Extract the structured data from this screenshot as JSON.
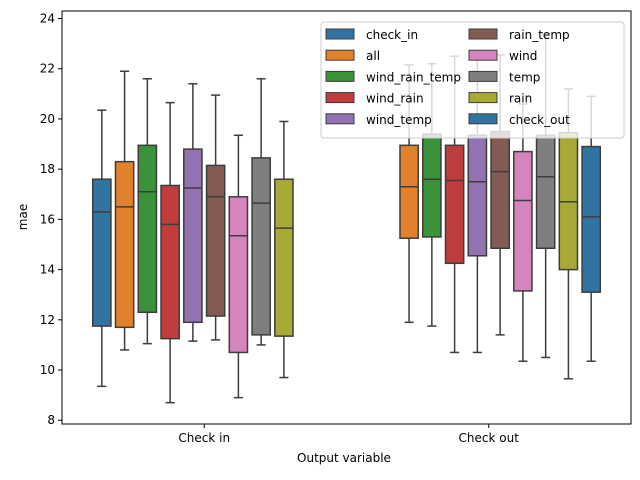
{
  "chart_data": {
    "type": "boxplot",
    "title": "",
    "xlabel": "Output variable",
    "ylabel": "mae",
    "ylim": [
      7.85,
      24.3
    ],
    "yticks": [
      8,
      10,
      12,
      14,
      16,
      18,
      20,
      22,
      24
    ],
    "categories": [
      "Check in",
      "Check out"
    ],
    "legend_position": "top-right",
    "series": [
      {
        "name": "check_in",
        "color": "#3274a1",
        "boxes": [
          {
            "whislo": 9.35,
            "q1": 11.75,
            "med": 16.3,
            "q3": 17.6,
            "whishi": 20.35
          },
          null
        ]
      },
      {
        "name": "all",
        "color": "#e1812c",
        "boxes": [
          {
            "whislo": 10.8,
            "q1": 11.7,
            "med": 16.5,
            "q3": 18.3,
            "whishi": 21.9
          },
          {
            "whislo": 11.9,
            "q1": 15.25,
            "med": 17.3,
            "q3": 18.95,
            "whishi": 22.15
          }
        ]
      },
      {
        "name": "wind_rain_temp",
        "color": "#3a923a",
        "boxes": [
          {
            "whislo": 11.05,
            "q1": 12.3,
            "med": 17.1,
            "q3": 18.95,
            "whishi": 21.6
          },
          {
            "whislo": 11.75,
            "q1": 15.3,
            "med": 17.6,
            "q3": 19.4,
            "whishi": 22.2
          }
        ]
      },
      {
        "name": "wind_rain",
        "color": "#c03d3e",
        "boxes": [
          {
            "whislo": 8.7,
            "q1": 11.25,
            "med": 15.8,
            "q3": 17.35,
            "whishi": 20.65
          },
          {
            "whislo": 10.7,
            "q1": 14.25,
            "med": 17.55,
            "q3": 18.95,
            "whishi": 22.5
          }
        ]
      },
      {
        "name": "wind_temp",
        "color": "#9372b2",
        "boxes": [
          {
            "whislo": 11.15,
            "q1": 11.9,
            "med": 17.25,
            "q3": 18.8,
            "whishi": 21.4
          },
          {
            "whislo": 10.7,
            "q1": 14.55,
            "med": 17.5,
            "q3": 19.35,
            "whishi": 22.55
          }
        ]
      },
      {
        "name": "rain_temp",
        "color": "#845b53",
        "boxes": [
          {
            "whislo": 11.2,
            "q1": 12.15,
            "med": 16.9,
            "q3": 18.15,
            "whishi": 20.95
          },
          {
            "whislo": 11.4,
            "q1": 14.85,
            "med": 17.9,
            "q3": 19.5,
            "whishi": 22.55
          }
        ]
      },
      {
        "name": "wind",
        "color": "#d684bd",
        "boxes": [
          {
            "whislo": 8.9,
            "q1": 10.7,
            "med": 15.35,
            "q3": 16.9,
            "whishi": 19.35
          },
          {
            "whislo": 10.35,
            "q1": 13.15,
            "med": 16.75,
            "q3": 18.7,
            "whishi": 20.6
          }
        ]
      },
      {
        "name": "temp",
        "color": "#7f7f7f",
        "boxes": [
          {
            "whislo": 11.0,
            "q1": 11.4,
            "med": 16.65,
            "q3": 18.45,
            "whishi": 21.6
          },
          {
            "whislo": 10.5,
            "q1": 14.85,
            "med": 17.7,
            "q3": 19.35,
            "whishi": 23.4
          }
        ]
      },
      {
        "name": "rain",
        "color": "#a9aa35",
        "boxes": [
          {
            "whislo": 9.7,
            "q1": 11.35,
            "med": 15.65,
            "q3": 17.6,
            "whishi": 19.9
          },
          {
            "whislo": 9.65,
            "q1": 14.0,
            "med": 16.7,
            "q3": 19.45,
            "whishi": 21.2
          }
        ]
      },
      {
        "name": "check_out",
        "color": "#3274a1",
        "boxes": [
          null,
          {
            "whislo": 10.35,
            "q1": 13.1,
            "med": 16.1,
            "q3": 18.9,
            "whishi": 20.9
          }
        ]
      }
    ]
  }
}
